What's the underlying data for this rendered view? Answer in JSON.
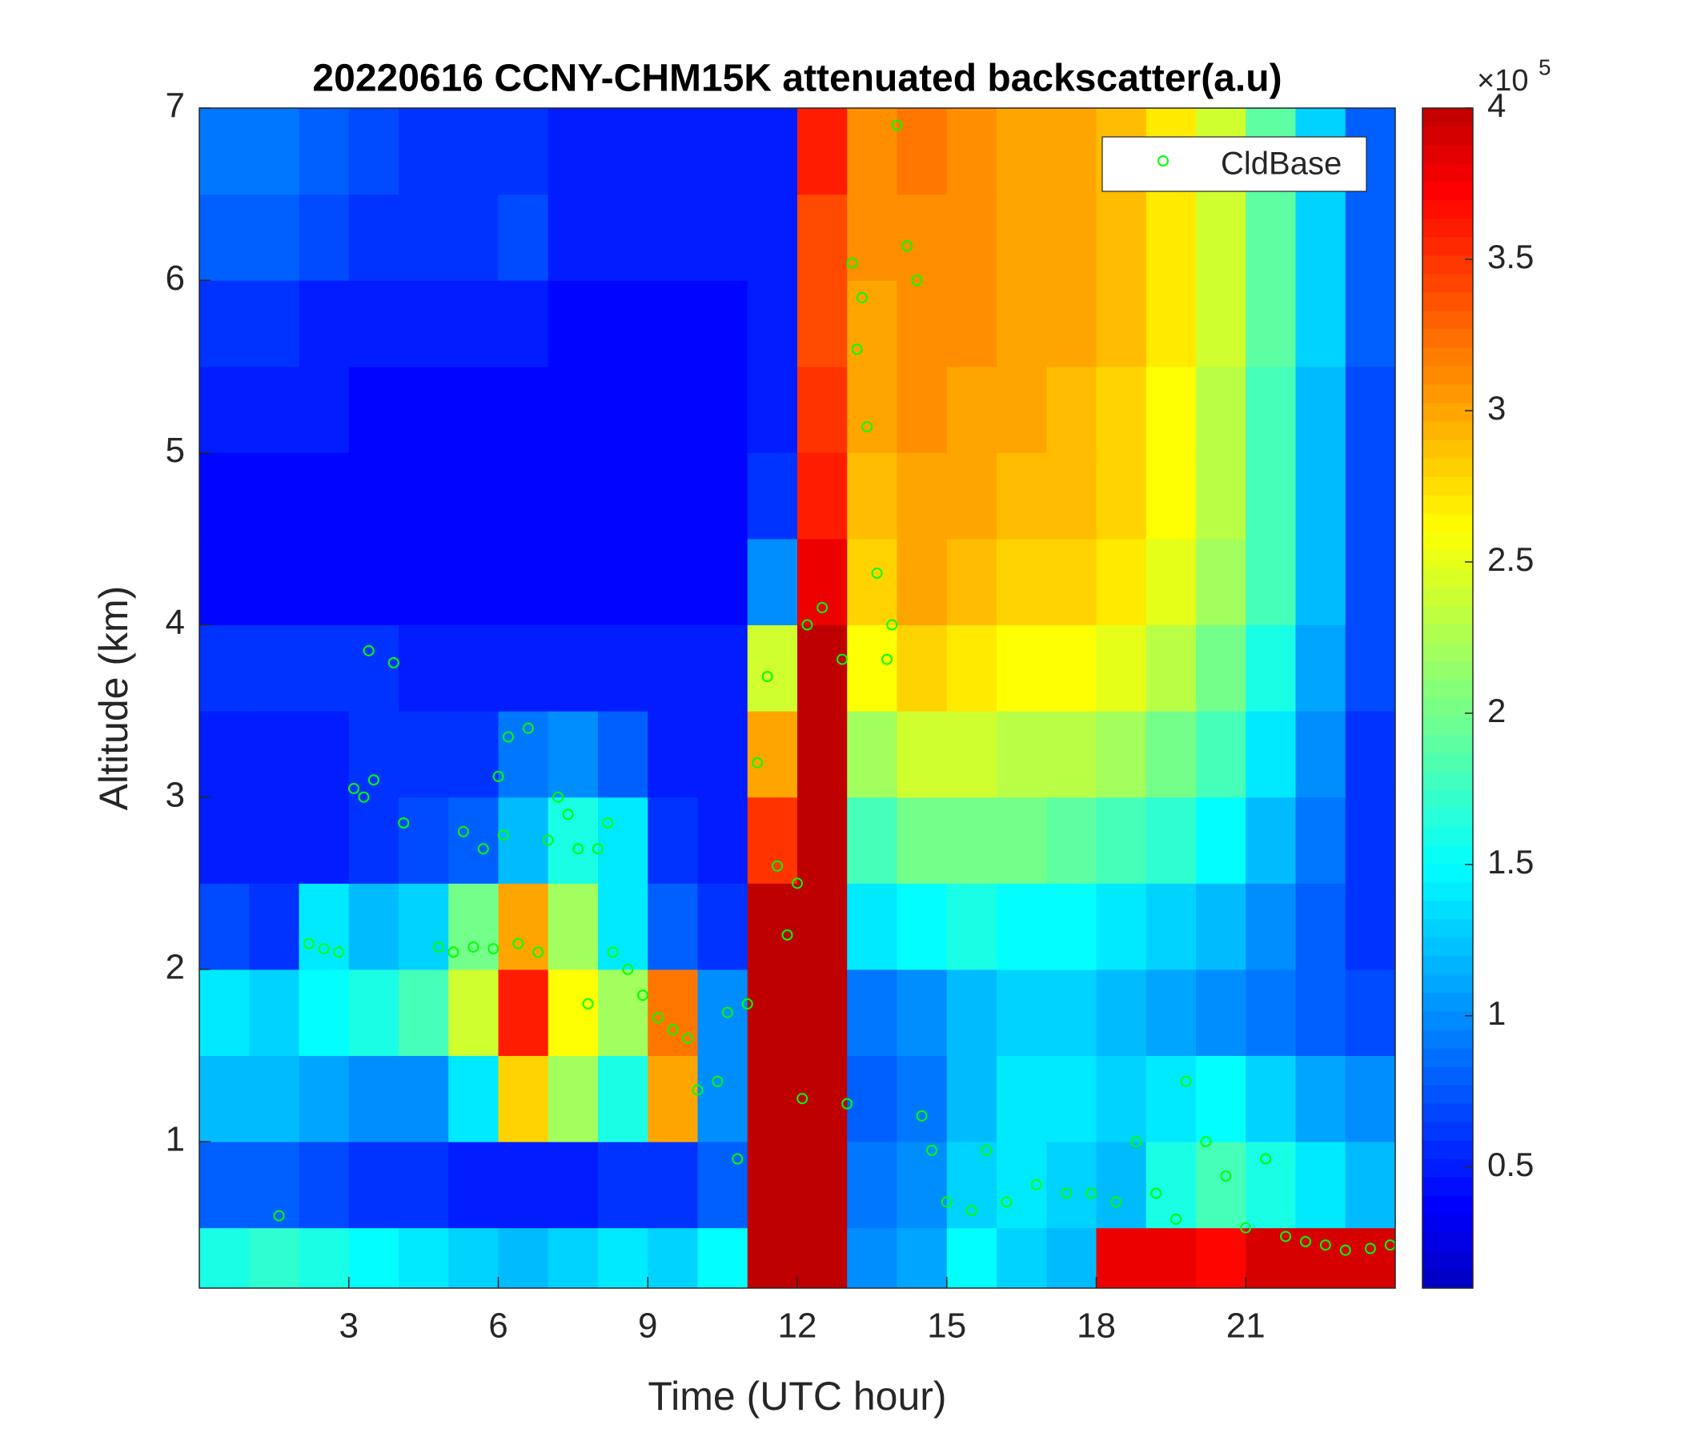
{
  "chart_data": {
    "type": "heatmap",
    "title": "20220616 CCNY-CHM15K attenuated backscatter(a.u)",
    "xlabel": "Time (UTC hour)",
    "ylabel": "Altitude (km)",
    "xlim": [
      0,
      24
    ],
    "xticks": [
      3,
      6,
      9,
      12,
      15,
      18,
      21
    ],
    "ylim": [
      0.15,
      7
    ],
    "yticks": [
      1,
      2,
      3,
      4,
      5,
      6,
      7
    ],
    "x_edges": [
      0,
      1,
      2,
      3,
      4,
      5,
      6,
      7,
      8,
      9,
      10,
      11,
      12,
      13,
      14,
      15,
      16,
      17,
      18,
      19,
      20,
      21,
      22,
      23,
      24
    ],
    "y_edges": [
      0.15,
      0.5,
      1,
      1.5,
      2,
      2.5,
      3,
      3.5,
      4,
      4.5,
      5,
      5.5,
      6,
      6.5,
      7
    ],
    "z": [
      [
        1.6,
        1.7,
        1.6,
        1.5,
        1.4,
        1.3,
        1.2,
        1.3,
        1.4,
        1.3,
        1.5,
        4,
        4,
        1.0,
        1.1,
        1.5,
        1.3,
        1.2,
        3.8,
        3.8,
        3.7,
        3.9,
        3.9,
        3.9
      ],
      [
        0.8,
        0.8,
        0.7,
        0.6,
        0.6,
        0.5,
        0.5,
        0.5,
        0.6,
        0.6,
        0.8,
        4,
        4,
        0.9,
        1.0,
        1.3,
        1.4,
        1.3,
        1.2,
        1.6,
        1.8,
        1.6,
        1.4,
        1.2
      ],
      [
        1.2,
        1.2,
        1.1,
        1.0,
        1.0,
        1.4,
        2.8,
        2.2,
        1.6,
        3.0,
        1.0,
        4,
        4,
        0.8,
        0.9,
        1.2,
        1.4,
        1.4,
        1.3,
        1.4,
        1.5,
        1.3,
        1.1,
        1.0
      ],
      [
        1.4,
        1.3,
        1.5,
        1.6,
        1.8,
        2.4,
        3.6,
        2.6,
        2.2,
        3.2,
        1.0,
        4,
        4,
        0.9,
        1.0,
        1.2,
        1.3,
        1.3,
        1.2,
        1.1,
        1.0,
        0.9,
        0.8,
        0.7
      ],
      [
        0.7,
        0.6,
        1.4,
        1.2,
        1.3,
        2.0,
        3.0,
        2.2,
        1.4,
        0.8,
        0.6,
        4,
        4,
        1.4,
        1.5,
        1.6,
        1.5,
        1.5,
        1.4,
        1.3,
        1.2,
        1.0,
        0.8,
        0.6
      ],
      [
        0.5,
        0.5,
        0.5,
        0.6,
        0.7,
        0.8,
        1.2,
        1.6,
        1.4,
        0.6,
        0.5,
        3.5,
        4,
        1.8,
        2.0,
        2.0,
        2.0,
        1.9,
        1.8,
        1.7,
        1.5,
        1.2,
        0.9,
        0.6
      ],
      [
        0.5,
        0.5,
        0.5,
        0.6,
        0.6,
        0.6,
        0.9,
        1.0,
        0.8,
        0.5,
        0.5,
        3.0,
        4,
        2.2,
        2.4,
        2.4,
        2.3,
        2.3,
        2.2,
        2.0,
        1.8,
        1.4,
        1.0,
        0.6
      ],
      [
        0.6,
        0.6,
        0.6,
        0.6,
        0.5,
        0.5,
        0.5,
        0.5,
        0.5,
        0.5,
        0.5,
        2.4,
        4,
        2.6,
        2.8,
        2.7,
        2.6,
        2.6,
        2.5,
        2.3,
        2.0,
        1.6,
        1.1,
        0.7
      ],
      [
        0.4,
        0.4,
        0.4,
        0.4,
        0.4,
        0.4,
        0.4,
        0.4,
        0.4,
        0.4,
        0.4,
        1.0,
        3.8,
        2.8,
        3.0,
        2.9,
        2.8,
        2.8,
        2.7,
        2.5,
        2.2,
        1.8,
        1.2,
        0.7
      ],
      [
        0.4,
        0.4,
        0.4,
        0.4,
        0.4,
        0.4,
        0.4,
        0.4,
        0.4,
        0.4,
        0.4,
        0.6,
        3.6,
        2.9,
        3.0,
        3.0,
        2.9,
        2.9,
        2.8,
        2.6,
        2.3,
        1.8,
        1.2,
        0.7
      ],
      [
        0.5,
        0.5,
        0.5,
        0.4,
        0.4,
        0.4,
        0.4,
        0.4,
        0.4,
        0.4,
        0.4,
        0.5,
        3.5,
        3.0,
        3.1,
        3.0,
        3.0,
        2.9,
        2.8,
        2.6,
        2.3,
        1.8,
        1.2,
        0.7
      ],
      [
        0.6,
        0.6,
        0.5,
        0.5,
        0.5,
        0.5,
        0.5,
        0.4,
        0.4,
        0.4,
        0.4,
        0.5,
        3.4,
        3.0,
        3.1,
        3.1,
        3.0,
        3.0,
        2.9,
        2.7,
        2.4,
        1.9,
        1.3,
        0.8
      ],
      [
        0.8,
        0.8,
        0.7,
        0.6,
        0.6,
        0.6,
        0.7,
        0.5,
        0.5,
        0.5,
        0.5,
        0.5,
        3.4,
        3.1,
        3.1,
        3.1,
        3.0,
        3.0,
        2.9,
        2.7,
        2.4,
        1.9,
        1.3,
        0.8
      ],
      [
        0.9,
        0.9,
        0.8,
        0.7,
        0.6,
        0.6,
        0.6,
        0.5,
        0.5,
        0.5,
        0.5,
        0.5,
        3.6,
        3.1,
        3.2,
        3.1,
        3.0,
        3.0,
        2.9,
        2.7,
        2.4,
        1.9,
        1.3,
        0.8
      ]
    ],
    "colormap": "jet",
    "clim": [
      0.1,
      4
    ],
    "colorbar_ticks": [
      0.5,
      1,
      1.5,
      2,
      2.5,
      3,
      3.5,
      4
    ],
    "colorbar_multiplier": {
      "base": "×10",
      "exponent": "5"
    },
    "overlay": {
      "type": "scatter",
      "name": "CldBase",
      "color": "#00ff00",
      "x": [
        1.6,
        2.2,
        2.5,
        2.8,
        3.1,
        3.3,
        3.4,
        3.5,
        3.9,
        4.1,
        4.8,
        5.1,
        5.3,
        5.5,
        5.7,
        5.9,
        6.0,
        6.1,
        6.2,
        6.4,
        6.6,
        6.8,
        7.0,
        7.2,
        7.4,
        7.6,
        7.8,
        8.0,
        8.2,
        8.3,
        8.6,
        8.9,
        9.2,
        9.5,
        9.8,
        10.0,
        10.4,
        10.6,
        10.8,
        11.0,
        11.2,
        11.4,
        11.6,
        11.8,
        12.0,
        12.1,
        12.2,
        12.5,
        12.9,
        13.0,
        13.1,
        13.2,
        13.3,
        13.4,
        13.6,
        13.8,
        13.9,
        14.0,
        14.2,
        14.4,
        14.5,
        14.7,
        15.0,
        15.5,
        15.8,
        16.2,
        16.8,
        17.4,
        17.9,
        18.4,
        18.8,
        19.2,
        19.6,
        19.8,
        20.2,
        20.6,
        21.0,
        21.4,
        21.8,
        22.2,
        22.6,
        23.0,
        23.5,
        23.9
      ],
      "y": [
        0.57,
        2.15,
        2.12,
        2.1,
        3.05,
        3.0,
        3.85,
        3.1,
        3.78,
        2.85,
        2.13,
        2.1,
        2.8,
        2.13,
        2.7,
        2.12,
        3.12,
        2.78,
        3.35,
        2.15,
        3.4,
        2.1,
        2.75,
        3.0,
        2.9,
        2.7,
        1.8,
        2.7,
        2.85,
        2.1,
        2.0,
        1.85,
        1.72,
        1.65,
        1.6,
        1.3,
        1.35,
        1.75,
        0.9,
        1.8,
        3.2,
        3.7,
        2.6,
        2.2,
        2.5,
        1.25,
        4.0,
        4.1,
        3.8,
        1.22,
        6.1,
        5.6,
        5.9,
        5.15,
        4.3,
        3.8,
        4.0,
        6.9,
        6.2,
        6.0,
        1.15,
        0.95,
        0.65,
        0.6,
        0.95,
        0.65,
        0.75,
        0.7,
        0.7,
        0.65,
        1.0,
        0.7,
        0.55,
        1.35,
        1.0,
        0.8,
        0.5,
        0.9,
        0.45,
        0.42,
        0.4,
        0.37,
        0.38,
        0.4
      ]
    },
    "legend": "upper right"
  }
}
